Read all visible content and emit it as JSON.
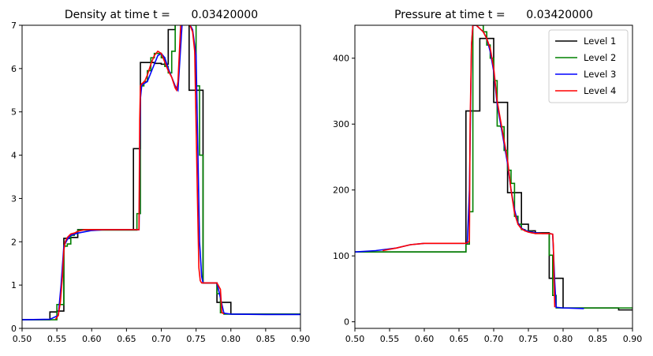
{
  "chart_data": [
    {
      "type": "line",
      "title": "Density at time t =      0.03420000",
      "xlabel": "",
      "ylabel": "",
      "xlim": [
        0.5,
        0.9
      ],
      "ylim": [
        0,
        7
      ],
      "xticks": [
        "0.50",
        "0.55",
        "0.60",
        "0.65",
        "0.70",
        "0.75",
        "0.80",
        "0.85",
        "0.90"
      ],
      "yticks": [
        "0",
        "1",
        "2",
        "3",
        "4",
        "5",
        "6",
        "7"
      ],
      "grid": false,
      "series": [
        {
          "name": "Level 1",
          "color": "#000000",
          "step": true,
          "x": [
            0.5,
            0.54,
            0.55,
            0.56,
            0.57,
            0.58,
            0.66,
            0.67,
            0.68,
            0.69,
            0.7,
            0.71,
            0.72,
            0.73,
            0.74,
            0.75,
            0.76,
            0.77,
            0.78,
            0.79,
            0.8,
            0.9
          ],
          "y": [
            0.2,
            0.38,
            0.4,
            2.08,
            2.1,
            2.28,
            4.15,
            6.14,
            6.14,
            6.12,
            6.1,
            6.9,
            7.1,
            7.1,
            5.5,
            5.5,
            1.05,
            1.05,
            0.6,
            0.6,
            0.33,
            0.33
          ]
        },
        {
          "name": "Level 2",
          "color": "#008000",
          "step": true,
          "x": [
            0.5,
            0.545,
            0.55,
            0.555,
            0.56,
            0.565,
            0.57,
            0.575,
            0.58,
            0.665,
            0.67,
            0.675,
            0.68,
            0.685,
            0.69,
            0.695,
            0.7,
            0.705,
            0.71,
            0.715,
            0.72,
            0.725,
            0.73,
            0.735,
            0.74,
            0.745,
            0.75,
            0.755,
            0.76,
            0.765,
            0.77,
            0.775,
            0.78,
            0.785,
            0.79,
            0.8,
            0.9
          ],
          "y": [
            0.2,
            0.2,
            0.55,
            0.55,
            1.9,
            1.95,
            2.15,
            2.2,
            2.27,
            2.65,
            5.6,
            5.7,
            5.95,
            6.25,
            6.35,
            6.35,
            6.25,
            6.05,
            5.9,
            6.4,
            7.1,
            7.1,
            7.1,
            7.1,
            7.1,
            7.0,
            5.6,
            4.0,
            1.05,
            1.05,
            1.05,
            1.05,
            0.8,
            0.36,
            0.33,
            0.33,
            0.32
          ]
        },
        {
          "name": "Level 3",
          "color": "#0000ff",
          "step": false,
          "x": [
            0.5,
            0.54,
            0.552,
            0.556,
            0.56,
            0.565,
            0.57,
            0.58,
            0.6,
            0.62,
            0.64,
            0.668,
            0.67,
            0.672,
            0.68,
            0.69,
            0.695,
            0.7,
            0.705,
            0.71,
            0.715,
            0.72,
            0.724,
            0.73,
            0.735,
            0.74,
            0.745,
            0.75,
            0.755,
            0.758,
            0.76,
            0.77,
            0.78,
            0.79,
            0.8,
            0.85,
            0.9
          ],
          "y": [
            0.2,
            0.21,
            0.3,
            1.0,
            1.9,
            2.05,
            2.15,
            2.2,
            2.26,
            2.28,
            2.28,
            2.28,
            5.3,
            5.62,
            5.7,
            6.1,
            6.3,
            6.35,
            6.25,
            6.0,
            5.8,
            5.6,
            5.5,
            7.05,
            7.1,
            7.05,
            6.9,
            6.3,
            2.0,
            1.2,
            1.05,
            1.05,
            1.05,
            0.35,
            0.33,
            0.32,
            0.32
          ]
        },
        {
          "name": "Level 4",
          "color": "#ff0000",
          "step": false,
          "x": [
            0.548,
            0.552,
            0.555,
            0.558,
            0.56,
            0.562,
            0.565,
            0.57,
            0.575,
            0.58,
            0.585,
            0.59,
            0.668,
            0.669,
            0.67,
            0.672,
            0.676,
            0.68,
            0.685,
            0.69,
            0.695,
            0.7,
            0.705,
            0.71,
            0.715,
            0.72,
            0.722,
            0.724,
            0.728,
            0.73,
            0.74,
            0.745,
            0.748,
            0.752,
            0.754,
            0.756,
            0.758,
            0.76,
            0.78,
            0.785,
            0.787,
            0.79
          ],
          "y": [
            0.21,
            0.3,
            0.6,
            1.2,
            1.8,
            2.0,
            2.1,
            2.18,
            2.2,
            2.24,
            2.26,
            2.28,
            2.28,
            4.8,
            5.6,
            5.65,
            5.7,
            5.85,
            6.1,
            6.3,
            6.4,
            6.35,
            6.15,
            5.95,
            5.8,
            5.55,
            5.5,
            5.7,
            7.05,
            7.1,
            7.05,
            6.85,
            6.4,
            3.0,
            1.4,
            1.1,
            1.05,
            1.05,
            1.05,
            0.9,
            0.36,
            0.34
          ]
        }
      ]
    },
    {
      "type": "line",
      "title": "Pressure at time t =      0.03420000",
      "xlabel": "",
      "ylabel": "",
      "xlim": [
        0.5,
        0.9
      ],
      "ylim": [
        -10,
        450
      ],
      "xticks": [
        "0.50",
        "0.55",
        "0.60",
        "0.65",
        "0.70",
        "0.75",
        "0.80",
        "0.85",
        "0.90"
      ],
      "yticks": [
        "0",
        "100",
        "200",
        "300",
        "400"
      ],
      "grid": false,
      "legend": "top-right",
      "series": [
        {
          "name": "Level 1",
          "color": "#000000",
          "step": true,
          "x": [
            0.5,
            0.66,
            0.67,
            0.68,
            0.69,
            0.7,
            0.71,
            0.72,
            0.73,
            0.74,
            0.75,
            0.76,
            0.77,
            0.78,
            0.79,
            0.8,
            0.82,
            0.88,
            0.9
          ],
          "y": [
            106,
            320,
            320,
            430,
            430,
            333,
            333,
            196,
            196,
            148,
            138,
            135,
            135,
            66,
            66,
            21,
            21,
            18,
            18
          ]
        },
        {
          "name": "Level 2",
          "color": "#008000",
          "step": true,
          "x": [
            0.5,
            0.66,
            0.665,
            0.67,
            0.675,
            0.68,
            0.685,
            0.69,
            0.695,
            0.7,
            0.705,
            0.71,
            0.715,
            0.72,
            0.725,
            0.73,
            0.735,
            0.74,
            0.745,
            0.75,
            0.755,
            0.76,
            0.765,
            0.77,
            0.775,
            0.78,
            0.785,
            0.79,
            0.8,
            0.9
          ],
          "y": [
            106,
            118,
            167,
            450,
            450,
            450,
            440,
            420,
            400,
            366,
            297,
            296,
            260,
            230,
            210,
            160,
            148,
            140,
            138,
            137,
            135,
            134,
            134,
            134,
            134,
            101,
            40,
            21,
            21,
            20
          ]
        },
        {
          "name": "Level 3",
          "color": "#0000ff",
          "step": false,
          "x": [
            0.5,
            0.53,
            0.56,
            0.58,
            0.6,
            0.62,
            0.64,
            0.662,
            0.665,
            0.668,
            0.67,
            0.675,
            0.68,
            0.685,
            0.69,
            0.695,
            0.7,
            0.705,
            0.71,
            0.715,
            0.72,
            0.725,
            0.73,
            0.735,
            0.74,
            0.745,
            0.75,
            0.76,
            0.77,
            0.78,
            0.785,
            0.788,
            0.79,
            0.8,
            0.83
          ],
          "y": [
            106,
            108,
            112,
            117,
            119,
            119,
            119,
            119,
            200,
            420,
            450,
            450,
            445,
            440,
            430,
            410,
            380,
            330,
            300,
            270,
            240,
            200,
            170,
            150,
            142,
            139,
            137,
            135,
            134,
            134,
            133,
            60,
            22,
            21,
            20
          ]
        },
        {
          "name": "Level 4",
          "color": "#ff0000",
          "step": false,
          "x": [
            0.54,
            0.56,
            0.58,
            0.6,
            0.62,
            0.64,
            0.66,
            0.665,
            0.666,
            0.668,
            0.67,
            0.675,
            0.68,
            0.685,
            0.69,
            0.695,
            0.7,
            0.705,
            0.71,
            0.715,
            0.72,
            0.725,
            0.73,
            0.735,
            0.74,
            0.745,
            0.75,
            0.76,
            0.77,
            0.78,
            0.785,
            0.786,
            0.787,
            0.788
          ],
          "y": [
            108,
            112,
            117,
            119,
            119,
            119,
            119,
            122,
            300,
            420,
            450,
            450,
            445,
            440,
            430,
            415,
            385,
            335,
            305,
            275,
            245,
            200,
            165,
            148,
            141,
            138,
            136,
            134,
            134,
            134,
            133,
            115,
            60,
            22
          ]
        }
      ]
    }
  ]
}
